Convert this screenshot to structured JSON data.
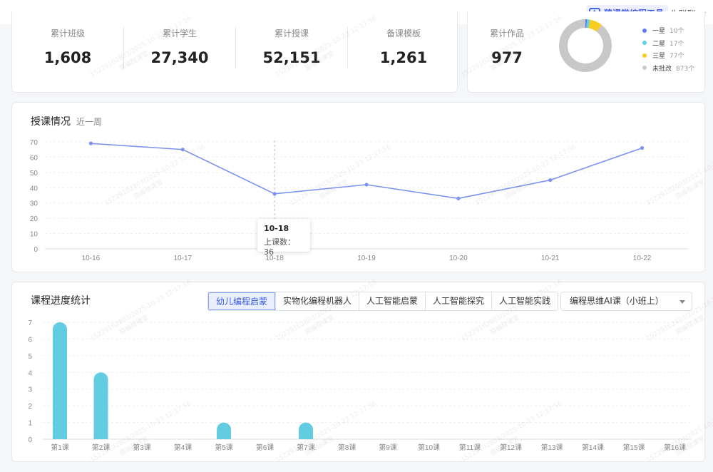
{
  "topbar": {
    "brand": "猿课堂编程工具",
    "user": "朱聪聪"
  },
  "stats": [
    {
      "label": "累计班级",
      "value": "1,608"
    },
    {
      "label": "累计学生",
      "value": "27,340"
    },
    {
      "label": "累计授课",
      "value": "52,151"
    },
    {
      "label": "备课模板",
      "value": "1,261"
    }
  ],
  "works": {
    "label": "累计作品",
    "value": "977",
    "legend": [
      {
        "name": "一星",
        "count": "10个",
        "color": "#5b7cf5",
        "value": 10
      },
      {
        "name": "二星",
        "count": "17个",
        "color": "#5fd3e8",
        "value": 17
      },
      {
        "name": "三星",
        "count": "77个",
        "color": "#f7cd1f",
        "value": 77
      },
      {
        "name": "未批改",
        "count": "873个",
        "color": "#c8c8c8",
        "value": 873
      }
    ]
  },
  "lesson": {
    "title": "授课情况",
    "subtitle": "近一周",
    "tooltip": {
      "date": "10-18",
      "text": "上课数：36"
    }
  },
  "progress": {
    "title": "课程进度统计",
    "tabs": [
      "幼儿编程启蒙",
      "实物化编程机器人",
      "人工智能启蒙",
      "人工智能探究",
      "人工智能实践"
    ],
    "active_tab": 0,
    "select": "编程思维AI课（小班上）"
  },
  "watermark": "15229102803/2025-10-23 12:17:56",
  "watermark2": "猿编程课堂",
  "chart_data": [
    {
      "type": "line",
      "categories": [
        "10-16",
        "10-17",
        "10-18",
        "10-19",
        "10-20",
        "10-21",
        "10-22"
      ],
      "values": [
        69,
        65,
        36,
        42,
        33,
        45,
        66
      ],
      "ylim": [
        0,
        70
      ],
      "yticks": [
        0,
        10,
        20,
        30,
        40,
        50,
        60,
        70
      ],
      "color": "#7b93f0",
      "grid": true
    },
    {
      "type": "bar",
      "categories": [
        "第1课",
        "第2课",
        "第3课",
        "第4课",
        "第5课",
        "第6课",
        "第7课",
        "第8课",
        "第9课",
        "第10课",
        "第11课",
        "第12课",
        "第13课",
        "第14课",
        "第15课",
        "第16课"
      ],
      "values": [
        7,
        4,
        0,
        0,
        1,
        0,
        1,
        0,
        0,
        0,
        0,
        0,
        0,
        0,
        0,
        0
      ],
      "ylim": [
        0,
        7
      ],
      "yticks": [
        0,
        1,
        2,
        3,
        4,
        5,
        6,
        7
      ],
      "color": "#62cde0",
      "grid": true
    }
  ]
}
